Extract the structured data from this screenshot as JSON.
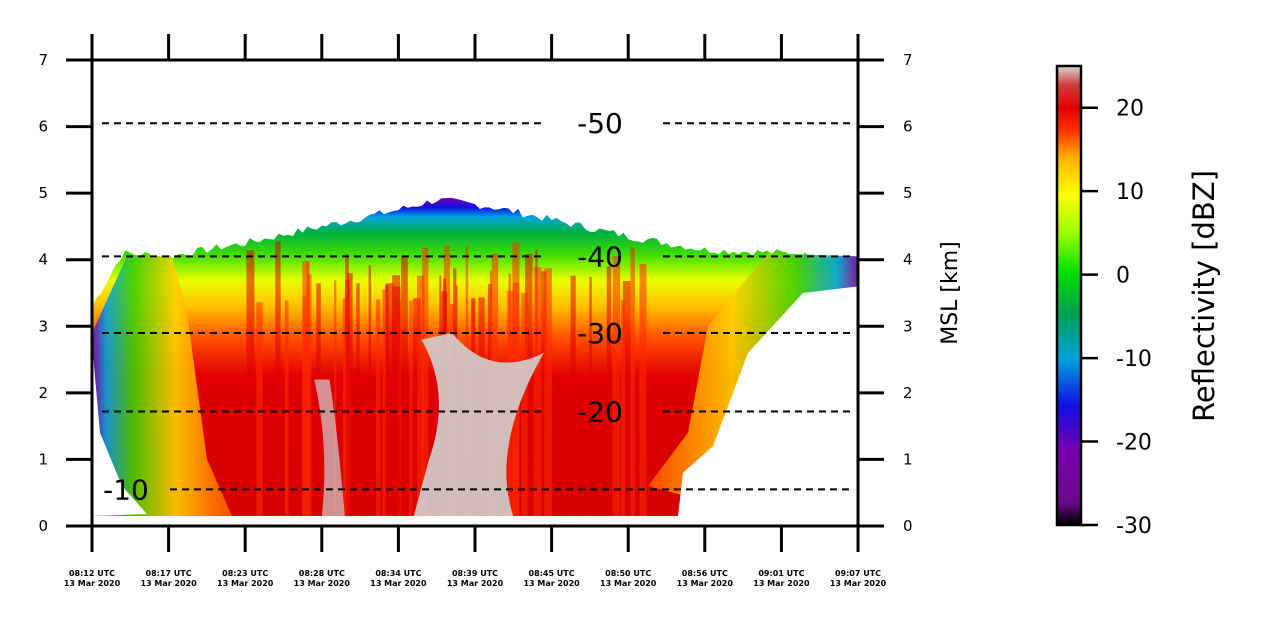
{
  "chart_data": {
    "type": "heatmap",
    "description_visible": true,
    "x_ticks": [
      {
        "time": "08:12 UTC",
        "date": "13 Mar 2020"
      },
      {
        "time": "08:17 UTC",
        "date": "13 Mar 2020"
      },
      {
        "time": "08:23 UTC",
        "date": "13 Mar 2020"
      },
      {
        "time": "08:28 UTC",
        "date": "13 Mar 2020"
      },
      {
        "time": "08:34 UTC",
        "date": "13 Mar 2020"
      },
      {
        "time": "08:39 UTC",
        "date": "13 Mar 2020"
      },
      {
        "time": "08:45 UTC",
        "date": "13 Mar 2020"
      },
      {
        "time": "08:50 UTC",
        "date": "13 Mar 2020"
      },
      {
        "time": "08:56 UTC",
        "date": "13 Mar 2020"
      },
      {
        "time": "09:01 UTC",
        "date": "13 Mar 2020"
      },
      {
        "time": "09:07 UTC",
        "date": "13 Mar 2020"
      }
    ],
    "y_ticks": [
      "0",
      "1",
      "2",
      "3",
      "4",
      "5",
      "6",
      "7"
    ],
    "ylim": [
      0,
      7
    ],
    "ylabel_right": "MSL [km]",
    "isotherms": [
      {
        "label": "-10",
        "height_km": 0.55
      },
      {
        "label": "-20",
        "height_km": 1.72
      },
      {
        "label": "-30",
        "height_km": 2.9
      },
      {
        "label": "-40",
        "height_km": 4.05
      },
      {
        "label": "-50",
        "height_km": 6.05
      }
    ],
    "colorbar": {
      "label": "Reflectivity [dBZ]",
      "range": [
        -30,
        25
      ],
      "ticks": [
        "-30",
        "-20",
        "-10",
        "0",
        "10",
        "20"
      ]
    },
    "echo_top_km": [
      {
        "t": 0.0,
        "h": 3.3
      },
      {
        "t": 0.04,
        "h": 4.1
      },
      {
        "t": 0.1,
        "h": 4.05
      },
      {
        "t": 0.2,
        "h": 4.25
      },
      {
        "t": 0.3,
        "h": 4.5
      },
      {
        "t": 0.4,
        "h": 4.75
      },
      {
        "t": 0.45,
        "h": 4.9
      },
      {
        "t": 0.52,
        "h": 4.8
      },
      {
        "t": 0.6,
        "h": 4.6
      },
      {
        "t": 0.7,
        "h": 4.35
      },
      {
        "t": 0.8,
        "h": 4.15
      },
      {
        "t": 0.9,
        "h": 4.1
      },
      {
        "t": 1.0,
        "h": 4.0
      }
    ],
    "grid": false
  }
}
